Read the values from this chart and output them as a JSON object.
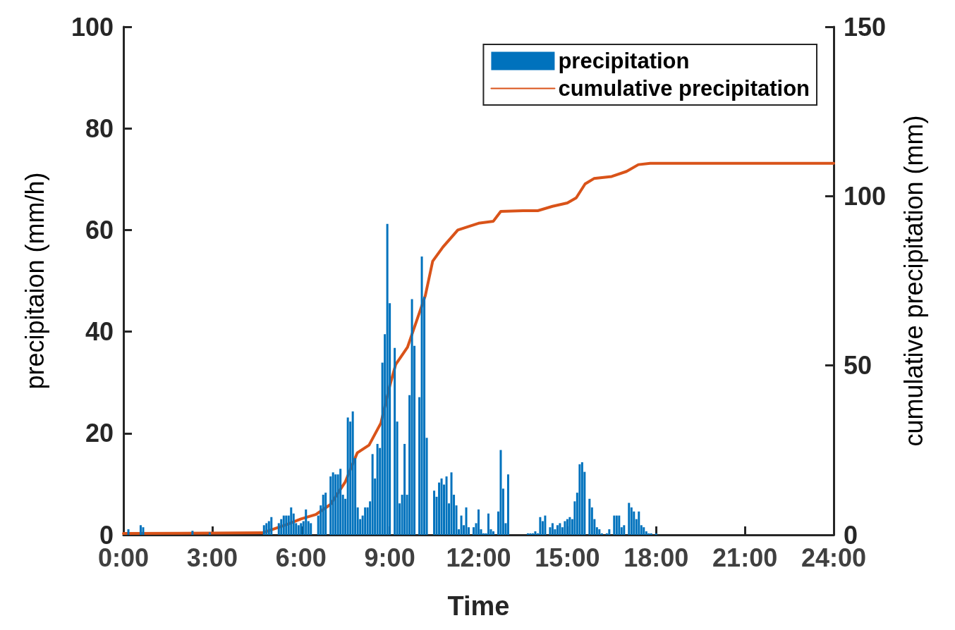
{
  "chart_data": {
    "type": "bar",
    "xlabel": "Time",
    "ylabel": "precipitaion (mm/h)",
    "y2label": "cumulative precipitation (mm)",
    "xlim": [
      0,
      24
    ],
    "xticks": [
      {
        "value": 0,
        "label": "0:00"
      },
      {
        "value": 3,
        "label": "3:00"
      },
      {
        "value": 6,
        "label": "6:00"
      },
      {
        "value": 9,
        "label": "9:00"
      },
      {
        "value": 12,
        "label": "12:00"
      },
      {
        "value": 15,
        "label": "15:00"
      },
      {
        "value": 18,
        "label": "18:00"
      },
      {
        "value": 21,
        "label": "21:00"
      },
      {
        "value": 24,
        "label": "24:00"
      }
    ],
    "ylim": [
      0,
      100
    ],
    "yticks": [
      0,
      20,
      40,
      60,
      80,
      100
    ],
    "y2lim": [
      0,
      150
    ],
    "y2ticks": [
      0,
      50,
      100,
      150
    ],
    "grid": false,
    "legend": "top right",
    "series": [
      {
        "name": "precipitation",
        "color": "#0072bd",
        "x": [
          0.167,
          0.583,
          0.667,
          2.333,
          2.917,
          4.75,
          4.833,
          4.917,
          5,
          5.25,
          5.333,
          5.417,
          5.5,
          5.583,
          5.667,
          5.75,
          5.833,
          5.917,
          6,
          6.083,
          6.167,
          6.25,
          6.333,
          6.583,
          6.667,
          6.75,
          6.833,
          7,
          7.083,
          7.167,
          7.25,
          7.333,
          7.417,
          7.5,
          7.583,
          7.667,
          7.75,
          7.833,
          7.917,
          8,
          8.083,
          8.167,
          8.25,
          8.333,
          8.417,
          8.5,
          8.583,
          8.667,
          8.75,
          8.833,
          8.917,
          9,
          9.167,
          9.25,
          9.333,
          9.417,
          9.5,
          9.583,
          9.667,
          9.75,
          9.833,
          10,
          10.083,
          10.167,
          10.25,
          10.5,
          10.583,
          10.667,
          10.75,
          10.833,
          10.917,
          11,
          11.083,
          11.167,
          11.25,
          11.333,
          11.417,
          11.5,
          11.583,
          11.667,
          11.833,
          11.917,
          12,
          12.083,
          12.167,
          12.25,
          12.333,
          12.417,
          12.5,
          12.667,
          12.75,
          12.833,
          12.917,
          13,
          13.667,
          13.75,
          13.833,
          13.917,
          14,
          14.083,
          14.167,
          14.25,
          14.417,
          14.5,
          14.583,
          14.667,
          14.75,
          14.833,
          14.917,
          15,
          15.083,
          15.167,
          15.25,
          15.333,
          15.417,
          15.5,
          15.583,
          15.75,
          15.833,
          15.917,
          16,
          16.083,
          16.167,
          16.333,
          16.417,
          16.583,
          16.667,
          16.75,
          16.833,
          16.917,
          17.083,
          17.167,
          17.25,
          17.333,
          17.417,
          17.5,
          17.583,
          17.667,
          17.75,
          17.833,
          18
        ],
        "values": [
          1.1,
          1.9,
          1.5,
          0.8,
          0.5,
          1.9,
          2.3,
          2.7,
          3.5,
          2.3,
          3.1,
          3.8,
          3.8,
          3.8,
          5.4,
          4.2,
          2.3,
          1.9,
          2.3,
          2.7,
          5.0,
          2.7,
          2.3,
          3.8,
          5.8,
          7.9,
          8.3,
          11.5,
          12.3,
          11.9,
          11.9,
          13.0,
          7.9,
          7.1,
          23.1,
          22.3,
          24.3,
          15.1,
          5.4,
          3.1,
          3.8,
          5.4,
          5.4,
          6.6,
          15.9,
          11.1,
          17.9,
          17.1,
          33.9,
          39.5,
          61.2,
          45.6,
          36.8,
          22.3,
          6.2,
          7.9,
          17.9,
          7.9,
          27.5,
          46.4,
          37.2,
          27.1,
          54.8,
          46.8,
          19.1,
          8.7,
          7.5,
          10.3,
          11.1,
          9.9,
          11.5,
          6.2,
          12.3,
          7.9,
          5.8,
          1.1,
          3.8,
          1.9,
          5.4,
          1.5,
          1.5,
          2.3,
          5.0,
          1.1,
          0.3,
          0.3,
          4.2,
          1.1,
          0.7,
          4.6,
          16.7,
          9.1,
          2.3,
          11.9,
          0.3,
          0.3,
          0.3,
          0.7,
          0.3,
          3.5,
          2.7,
          3.8,
          1.5,
          2.3,
          1.1,
          1.9,
          2.3,
          1.5,
          2.7,
          3.1,
          3.5,
          3.1,
          6.6,
          8.3,
          13.9,
          14.3,
          12.4,
          7.1,
          5.4,
          3.1,
          1.5,
          1.1,
          0.3,
          0.3,
          1.1,
          3.8,
          3.8,
          3.8,
          1.5,
          1.9,
          6.3,
          5.4,
          4.6,
          3.1,
          4.6,
          1.9,
          1.5,
          0.7,
          0.3,
          0.3,
          0.3
        ]
      },
      {
        "name": "cumulative precipitation",
        "type": "line",
        "axis": "y2",
        "color": "#d95319",
        "x": [
          0,
          4.7,
          5.5,
          6,
          6.5,
          7,
          7.5,
          7.9,
          8.3,
          8.7,
          9,
          9.2,
          9.6,
          9.9,
          10.2,
          10.45,
          10.8,
          11.3,
          12,
          12.5,
          12.75,
          13.5,
          14,
          14.5,
          15,
          15.3,
          15.6,
          15.9,
          16.5,
          17,
          17.4,
          17.8,
          24
        ],
        "values": [
          0.4,
          0.6,
          3,
          4.7,
          6,
          9,
          15.7,
          24.2,
          26.5,
          33,
          44,
          50.3,
          55.4,
          63,
          70.6,
          80.8,
          85,
          90,
          92,
          92.6,
          95.5,
          95.7,
          95.7,
          97,
          98,
          99.5,
          103.6,
          105.2,
          105.8,
          107.3,
          109.3,
          109.7,
          109.7
        ]
      }
    ]
  }
}
